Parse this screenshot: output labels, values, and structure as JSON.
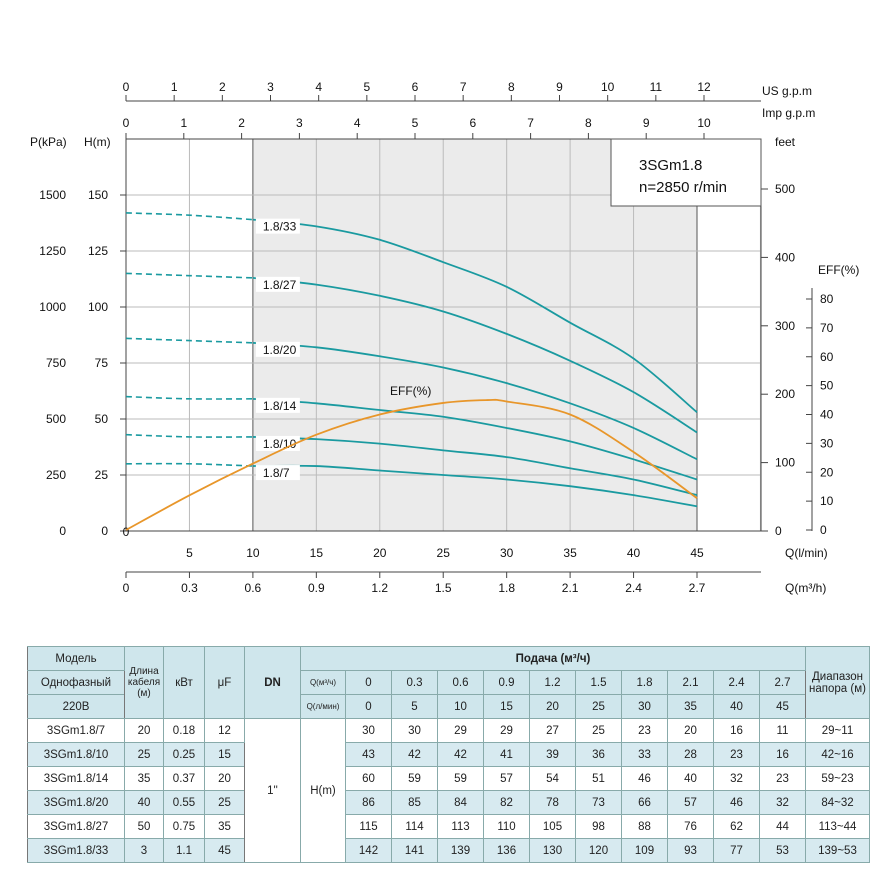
{
  "chart_data": {
    "type": "line",
    "title": "3SGm1.8",
    "subtitle": "n=2850 r/min",
    "x_axes": {
      "l_min": {
        "label": "Q(l/min)",
        "ticks": [
          5,
          10,
          15,
          20,
          25,
          30,
          35,
          40,
          45
        ],
        "range": [
          0,
          50
        ]
      },
      "m3_h": {
        "label": "Q(m³/h)",
        "ticks": [
          "0",
          "0.3",
          "0.6",
          "0.9",
          "1.2",
          "1.5",
          "1.8",
          "2.1",
          "2.4",
          "2.7"
        ]
      },
      "us_gpm": {
        "label": "US  g.p.m",
        "ticks": [
          0,
          1,
          2,
          3,
          4,
          5,
          6,
          7,
          8,
          9,
          10,
          11,
          12
        ]
      },
      "imp_gpm": {
        "label": "Imp  g.p.m",
        "ticks": [
          0,
          1,
          2,
          3,
          4,
          5,
          6,
          7,
          8,
          9,
          10
        ]
      }
    },
    "y_axes": {
      "kpa": {
        "label": "P(kPa)",
        "ticks": [
          0,
          250,
          500,
          750,
          1000,
          1250,
          1500
        ]
      },
      "h_m": {
        "label": "H(m)",
        "ticks": [
          0,
          25,
          50,
          75,
          100,
          125,
          150
        ],
        "range": [
          0,
          175
        ]
      },
      "feet": {
        "label": "feet",
        "ticks": [
          0,
          100,
          200,
          300,
          400,
          500
        ]
      },
      "eff": {
        "label": "EFF(%)",
        "ticks": [
          0,
          10,
          20,
          30,
          40,
          50,
          60,
          70,
          80
        ]
      }
    },
    "grid": true,
    "shaded_range_l_min": [
      10,
      45
    ],
    "x": [
      0,
      5,
      10,
      15,
      20,
      25,
      30,
      35,
      40,
      45
    ],
    "series": [
      {
        "name": "1.8/7",
        "values": [
          30,
          30,
          29,
          29,
          27,
          25,
          23,
          20,
          16,
          11
        ]
      },
      {
        "name": "1.8/10",
        "values": [
          43,
          42,
          42,
          41,
          39,
          36,
          33,
          28,
          23,
          16
        ]
      },
      {
        "name": "1.8/14",
        "values": [
          60,
          59,
          59,
          57,
          54,
          51,
          46,
          40,
          32,
          23
        ]
      },
      {
        "name": "1.8/20",
        "values": [
          86,
          85,
          84,
          82,
          78,
          73,
          66,
          57,
          46,
          32
        ]
      },
      {
        "name": "1.8/27",
        "values": [
          115,
          114,
          113,
          110,
          105,
          98,
          88,
          76,
          62,
          44
        ]
      },
      {
        "name": "1.8/33",
        "values": [
          142,
          141,
          139,
          136,
          130,
          120,
          109,
          93,
          77,
          53
        ]
      }
    ],
    "efficiency": {
      "name": "EFF(%)",
      "x": [
        0,
        5,
        10,
        15,
        20,
        25,
        28.5,
        30,
        35,
        40,
        45
      ],
      "values": [
        0,
        12,
        23,
        33,
        40,
        44,
        45,
        44.5,
        40,
        27,
        11
      ]
    },
    "colors": {
      "head": "#1a9aa0",
      "eff": "#e8962a",
      "shade": "#ebebeb"
    }
  },
  "table": {
    "h_model": "Модель",
    "h_phase": "Однофазный",
    "h_volt": "220В",
    "h_cable": "Длина кабеля (м)",
    "h_kw": "кВт",
    "h_uf": "μF",
    "h_dn": "DN",
    "h_flow": "Подача (м³/ч)",
    "h_q_m3": "Q(м³/ч)",
    "h_q_l": "Q(л/мин)",
    "h_range": "Диапазон напора (м)",
    "q_m3": [
      "0",
      "0.3",
      "0.6",
      "0.9",
      "1.2",
      "1.5",
      "1.8",
      "2.1",
      "2.4",
      "2.7"
    ],
    "q_l": [
      "0",
      "5",
      "10",
      "15",
      "20",
      "25",
      "30",
      "35",
      "40",
      "45"
    ],
    "dn": "1''",
    "h_unit": "H(m)",
    "rows": [
      {
        "model": "3SGm1.8/7",
        "cable": "20",
        "kw": "0.18",
        "uf": "12",
        "h": [
          "30",
          "30",
          "29",
          "29",
          "27",
          "25",
          "23",
          "20",
          "16",
          "11"
        ],
        "range": "29~11"
      },
      {
        "model": "3SGm1.8/10",
        "cable": "25",
        "kw": "0.25",
        "uf": "15",
        "h": [
          "43",
          "42",
          "42",
          "41",
          "39",
          "36",
          "33",
          "28",
          "23",
          "16"
        ],
        "range": "42~16"
      },
      {
        "model": "3SGm1.8/14",
        "cable": "35",
        "kw": "0.37",
        "uf": "20",
        "h": [
          "60",
          "59",
          "59",
          "57",
          "54",
          "51",
          "46",
          "40",
          "32",
          "23"
        ],
        "range": "59~23"
      },
      {
        "model": "3SGm1.8/20",
        "cable": "40",
        "kw": "0.55",
        "uf": "25",
        "h": [
          "86",
          "85",
          "84",
          "82",
          "78",
          "73",
          "66",
          "57",
          "46",
          "32"
        ],
        "range": "84~32"
      },
      {
        "model": "3SGm1.8/27",
        "cable": "50",
        "kw": "0.75",
        "uf": "35",
        "h": [
          "115",
          "114",
          "113",
          "110",
          "105",
          "98",
          "88",
          "76",
          "62",
          "44"
        ],
        "range": "113~44"
      },
      {
        "model": "3SGm1.8/33",
        "cable": "3",
        "kw": "1.1",
        "uf": "45",
        "h": [
          "142",
          "141",
          "139",
          "136",
          "130",
          "120",
          "109",
          "93",
          "77",
          "53"
        ],
        "range": "139~53"
      }
    ]
  }
}
